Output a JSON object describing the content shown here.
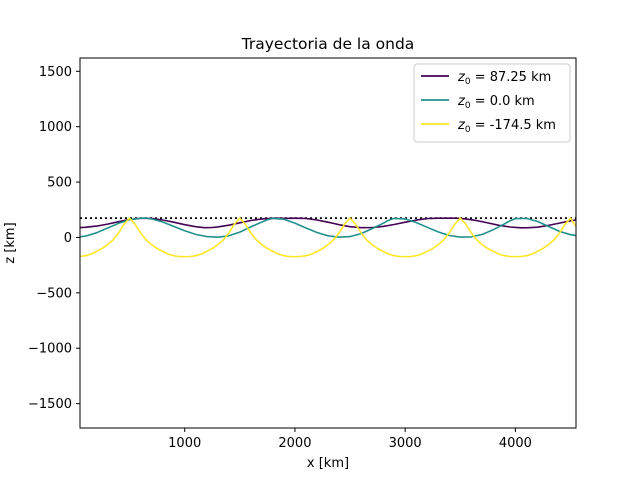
{
  "chart_data": {
    "type": "line",
    "title": "Trayectoria de la onda",
    "xlabel": "x [km]",
    "ylabel": "z [km]",
    "xlim": [
      50,
      4550
    ],
    "ylim": [
      -1720,
      1620
    ],
    "xticks": [
      1000,
      2000,
      3000,
      4000
    ],
    "yticks": [
      -1500,
      -1000,
      -500,
      0,
      500,
      1000,
      1500
    ],
    "grid": false,
    "legend_position": "upper right",
    "reference_line": {
      "y": 174.5,
      "style": "dotted",
      "color": "#000000"
    },
    "series": [
      {
        "name": "z0 = 87.25 km",
        "label_parts": {
          "var": "z",
          "sub": "0",
          "rest": " = 87.25 km"
        },
        "color": "#440154",
        "x": [
          0,
          100,
          200,
          300,
          400,
          500,
          600,
          650,
          700,
          800,
          900,
          1000,
          1100,
          1180,
          1250,
          1300,
          1400,
          1500,
          1600,
          1700,
          1800,
          1900,
          2000,
          2100,
          2200,
          2300,
          2350,
          2400,
          2500,
          2600,
          2700,
          2800,
          2900,
          3000,
          3100,
          3200,
          3300,
          3400,
          3460,
          3550,
          3650,
          3750,
          3850,
          3950,
          4050,
          4120,
          4200,
          4300,
          4400,
          4500,
          4560
        ],
        "y": [
          87,
          92,
          103,
          121,
          142,
          162,
          173,
          174,
          172,
          158,
          138,
          115,
          97,
          88,
          90,
          95,
          111,
          132,
          153,
          168,
          174,
          173,
          174,
          172,
          158,
          138,
          127,
          115,
          97,
          88,
          90,
          100,
          117,
          138,
          157,
          170,
          174,
          174,
          174,
          168,
          152,
          131,
          110,
          94,
          87,
          88,
          93,
          109,
          130,
          150,
          160
        ]
      },
      {
        "name": "z0 = 0.0 km",
        "label_parts": {
          "var": "z",
          "sub": "0",
          "rest": " = 0.0 km"
        },
        "color": "#21908d",
        "x": [
          0,
          100,
          200,
          300,
          400,
          500,
          600,
          650,
          700,
          800,
          900,
          1000,
          1100,
          1200,
          1300,
          1400,
          1500,
          1600,
          1700,
          1750,
          1800,
          1900,
          2000,
          2100,
          2200,
          2300,
          2400,
          2500,
          2600,
          2700,
          2800,
          2850,
          2900,
          3000,
          3100,
          3200,
          3300,
          3400,
          3500,
          3600,
          3700,
          3800,
          3900,
          3950,
          4000,
          4100,
          4200,
          4300,
          4400,
          4500,
          4560
        ],
        "y": [
          0,
          12,
          42,
          85,
          128,
          160,
          174,
          174,
          168,
          140,
          100,
          60,
          28,
          8,
          2,
          15,
          48,
          95,
          140,
          160,
          172,
          165,
          130,
          85,
          45,
          15,
          2,
          8,
          35,
          80,
          128,
          155,
          172,
          168,
          135,
          92,
          50,
          18,
          3,
          5,
          28,
          70,
          122,
          150,
          170,
          172,
          145,
          100,
          55,
          25,
          15
        ]
      },
      {
        "name": "z0 = -174.5 km",
        "label_parts": {
          "var": "z",
          "sub": "0",
          "rest": " = -174.5 km"
        },
        "color": "#fde725",
        "x": [
          0,
          50,
          100,
          150,
          200,
          250,
          300,
          350,
          400,
          450,
          500,
          550,
          600,
          650,
          700,
          750,
          800,
          850,
          900,
          950,
          1000,
          1050,
          1100,
          1150,
          1200,
          1250,
          1300,
          1350,
          1400,
          1450,
          1500,
          1550,
          1600,
          1650,
          1700,
          1750,
          1800,
          1850,
          1900,
          1950,
          2000,
          2050,
          2100,
          2150,
          2200,
          2250,
          2300,
          2350,
          2400,
          2450,
          2500,
          2550,
          2600,
          2650,
          2700,
          2750,
          2800,
          2850,
          2900,
          2950,
          3000,
          3050,
          3100,
          3150,
          3200,
          3250,
          3300,
          3350,
          3400,
          3450,
          3500,
          3550,
          3600,
          3650,
          3700,
          3750,
          3800,
          3850,
          3900,
          3950,
          4000,
          4050,
          4100,
          4150,
          4200,
          4250,
          4300,
          4350,
          4400,
          4450,
          4500,
          4550
        ],
        "y": [
          -174,
          -172,
          -165,
          -150,
          -126,
          -100,
          -65,
          -22,
          40,
          120,
          174,
          120,
          40,
          -22,
          -65,
          -100,
          -126,
          -150,
          -165,
          -172,
          -174,
          -172,
          -165,
          -150,
          -126,
          -100,
          -65,
          -22,
          40,
          120,
          174,
          120,
          40,
          -22,
          -65,
          -100,
          -126,
          -150,
          -165,
          -172,
          -174,
          -172,
          -165,
          -150,
          -126,
          -100,
          -65,
          -22,
          40,
          120,
          174,
          120,
          40,
          -22,
          -65,
          -100,
          -126,
          -150,
          -165,
          -172,
          -174,
          -172,
          -165,
          -150,
          -126,
          -100,
          -65,
          -22,
          40,
          120,
          174,
          120,
          40,
          -22,
          -65,
          -100,
          -126,
          -150,
          -165,
          -172,
          -174,
          -172,
          -165,
          -150,
          -126,
          -100,
          -65,
          -22,
          40,
          120,
          174,
          100
        ]
      }
    ]
  }
}
